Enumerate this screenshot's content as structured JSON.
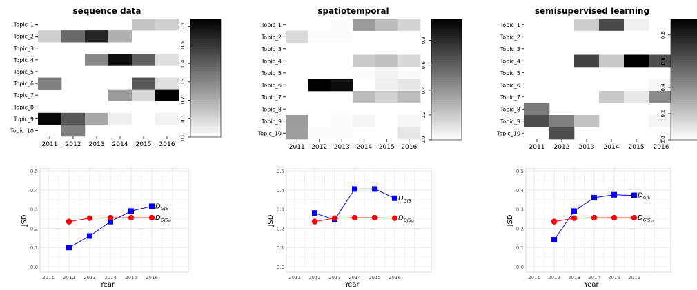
{
  "chart_data": [
    {
      "type": "heatmap",
      "title": "sequence data",
      "x": [
        "2011",
        "2012",
        "2013",
        "2014",
        "2015",
        "2016"
      ],
      "y": [
        "Topic_1",
        "Topic_2",
        "Topic_3",
        "Topic_4",
        "Topic_5",
        "Topic_6",
        "Topic_7",
        "Topic_8",
        "Topic_9",
        "Topic_10"
      ],
      "values": [
        [
          0,
          0,
          0,
          0,
          0.15,
          0.12
        ],
        [
          0.12,
          0.38,
          0.55,
          0.2,
          0,
          0
        ],
        [
          0,
          0,
          0,
          0,
          0,
          0
        ],
        [
          0,
          0,
          0.3,
          0.6,
          0.4,
          0.08
        ],
        [
          0,
          0,
          0,
          0,
          0,
          0
        ],
        [
          0.32,
          0,
          0,
          0,
          0.42,
          0.08
        ],
        [
          0,
          0,
          0,
          0.25,
          0.1,
          0.64
        ],
        [
          0,
          0,
          0,
          0,
          0,
          0
        ],
        [
          0.62,
          0.42,
          0.22,
          0.04,
          0,
          0.03
        ],
        [
          0,
          0.32,
          0,
          0,
          0,
          0
        ]
      ],
      "colorbar": {
        "min": 0,
        "max": 0.64,
        "ticks": [
          "0.0",
          "0.1",
          "0.2",
          "0.3",
          "0.4",
          "0.5",
          "0.6"
        ]
      }
    },
    {
      "type": "heatmap",
      "title": "spatiotemporal",
      "x": [
        "2011",
        "2012",
        "2013",
        "2014",
        "2015",
        "2016"
      ],
      "y": [
        "Topic_1",
        "Topic_2",
        "Topic_3",
        "Topic_4",
        "Topic_5",
        "Topic_6",
        "Topic_7",
        "Topic_8",
        "Topic_9",
        "Topic_10"
      ],
      "values": [
        [
          0,
          0,
          0.01,
          0.38,
          0.26,
          0.17
        ],
        [
          0.14,
          0.01,
          0.01,
          0,
          0,
          0
        ],
        [
          0,
          0,
          0,
          0,
          0,
          0
        ],
        [
          0,
          0,
          0,
          0.2,
          0.24,
          0.15
        ],
        [
          0,
          0,
          0,
          0.01,
          0.05,
          0.02
        ],
        [
          0,
          0.97,
          0.92,
          0,
          0.06,
          0.09
        ],
        [
          0,
          0,
          0,
          0.26,
          0.18,
          0.25
        ],
        [
          0,
          0,
          0,
          0,
          0,
          0
        ],
        [
          0.38,
          0,
          0.01,
          0.04,
          0,
          0.03
        ],
        [
          0.37,
          0.01,
          0.01,
          0,
          0,
          0.09
        ]
      ],
      "colorbar": {
        "min": 0,
        "max": 0.97,
        "ticks": [
          "0.0",
          "0.2",
          "0.4",
          "0.6",
          "0.8"
        ]
      }
    },
    {
      "type": "heatmap",
      "title": "semisupervised learning",
      "x": [
        "2011",
        "2012",
        "2013",
        "2014",
        "2015",
        "2016"
      ],
      "y": [
        "Topic_1",
        "Topic_2",
        "Topic_3",
        "Topic_4",
        "Topic_5",
        "Topic_6",
        "Topic_7",
        "Topic_8",
        "Topic_9",
        "Topic_10"
      ],
      "values": [
        [
          0,
          0,
          0.18,
          0.66,
          0.05,
          0
        ],
        [
          0,
          0,
          0,
          0,
          0,
          0
        ],
        [
          0,
          0,
          0,
          0,
          0,
          0
        ],
        [
          0,
          0,
          0.68,
          0.2,
          0.92,
          0.64
        ],
        [
          0,
          0,
          0,
          0,
          0,
          0
        ],
        [
          0,
          0,
          0,
          0,
          0,
          0.03
        ],
        [
          0,
          0,
          0,
          0.2,
          0.08,
          0.42
        ],
        [
          0.48,
          0,
          0,
          0,
          0,
          0
        ],
        [
          0.64,
          0.46,
          0.22,
          0,
          0,
          0.04
        ],
        [
          0,
          0.64,
          0,
          0,
          0,
          0
        ]
      ],
      "colorbar": {
        "min": 0,
        "max": 0.92,
        "ticks": [
          "0.0",
          "0.2",
          "0.4",
          "0.6",
          "0.8"
        ]
      }
    },
    {
      "type": "line",
      "xlabel": "Year",
      "ylabel": "JSD",
      "x": [
        2011,
        2012,
        2013,
        2014,
        2015,
        2016
      ],
      "xlim": [
        2011,
        2016
      ],
      "ylim": [
        0,
        0.5
      ],
      "yticks": [
        "0.0",
        "0.1",
        "0.2",
        "0.3",
        "0.4",
        "0.5"
      ],
      "grid": true,
      "series": [
        {
          "name": "D_GJS",
          "label_main": "D",
          "label_sub": "GJS",
          "color": "#0000ff",
          "marker": "square",
          "x": [
            2012,
            2013,
            2014,
            2015,
            2016
          ],
          "values": [
            0.1,
            0.16,
            0.235,
            0.29,
            0.315
          ]
        },
        {
          "name": "D_GJS_kl",
          "label_main": "D",
          "label_sub": "GJS",
          "label_subsub": "kl",
          "color": "#ff0000",
          "marker": "circle",
          "x": [
            2012,
            2013,
            2014,
            2015,
            2016
          ],
          "values": [
            0.235,
            0.253,
            0.255,
            0.255,
            0.255
          ]
        }
      ]
    },
    {
      "type": "line",
      "xlabel": "Year",
      "ylabel": "JSD",
      "x": [
        2011,
        2012,
        2013,
        2014,
        2015,
        2016
      ],
      "xlim": [
        2011,
        2016
      ],
      "ylim": [
        0,
        0.5
      ],
      "yticks": [
        "0.0",
        "0.1",
        "0.2",
        "0.3",
        "0.4",
        "0.5"
      ],
      "grid": true,
      "series": [
        {
          "name": "D_GJS",
          "label_main": "D",
          "label_sub": "GJS",
          "color": "#0000ff",
          "marker": "square",
          "x": [
            2012,
            2013,
            2014,
            2015,
            2016
          ],
          "values": [
            0.28,
            0.245,
            0.405,
            0.405,
            0.357
          ]
        },
        {
          "name": "D_GJS_kl",
          "label_main": "D",
          "label_sub": "GJS",
          "label_subsub": "kl",
          "color": "#ff0000",
          "marker": "circle",
          "x": [
            2012,
            2013,
            2014,
            2015,
            2016
          ],
          "values": [
            0.235,
            0.253,
            0.255,
            0.255,
            0.253
          ]
        }
      ]
    },
    {
      "type": "line",
      "xlabel": "Year",
      "ylabel": "JSD",
      "x": [
        2011,
        2012,
        2013,
        2014,
        2015,
        2016
      ],
      "xlim": [
        2011,
        2016
      ],
      "ylim": [
        0,
        0.5
      ],
      "yticks": [
        "0.0",
        "0.1",
        "0.2",
        "0.3",
        "0.4",
        "0.5"
      ],
      "grid": true,
      "series": [
        {
          "name": "D_GJS",
          "label_main": "D",
          "label_sub": "GJS",
          "color": "#0000ff",
          "marker": "square",
          "x": [
            2012,
            2013,
            2014,
            2015,
            2016
          ],
          "values": [
            0.14,
            0.29,
            0.36,
            0.375,
            0.372
          ]
        },
        {
          "name": "D_GJS_kl",
          "label_main": "D",
          "label_sub": "GJS",
          "label_subsub": "kl",
          "color": "#ff0000",
          "marker": "circle",
          "x": [
            2012,
            2013,
            2014,
            2015,
            2016
          ],
          "values": [
            0.235,
            0.253,
            0.255,
            0.255,
            0.255
          ]
        }
      ]
    }
  ]
}
